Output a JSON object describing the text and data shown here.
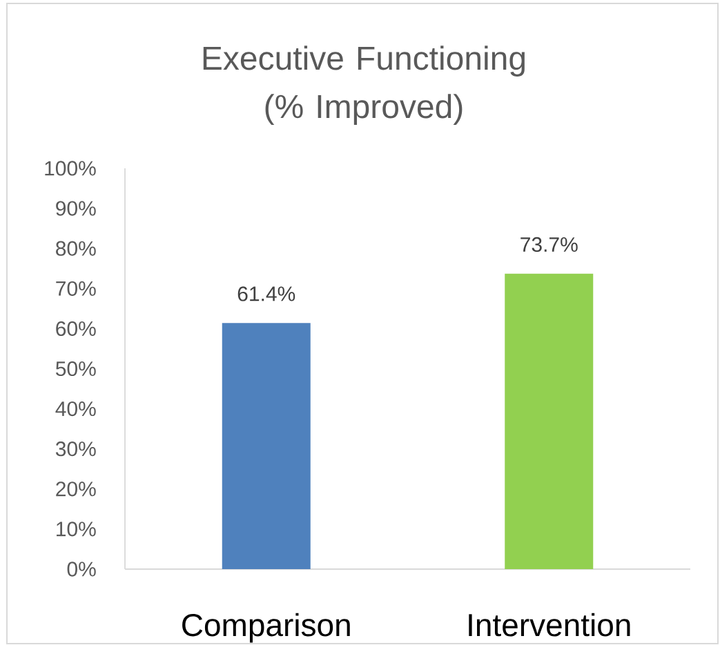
{
  "chart_data": {
    "type": "bar",
    "title": "Executive Functioning (% Improved)",
    "categories": [
      "Comparison",
      "Intervention"
    ],
    "values": [
      61.4,
      73.7
    ],
    "colors": [
      "#4f81bd",
      "#92d050"
    ],
    "value_labels": [
      "61.4%",
      "73.7%"
    ],
    "ylim": [
      0,
      100
    ],
    "yticks": [
      {
        "value": 0,
        "label": "0%"
      },
      {
        "value": 10,
        "label": "10%"
      },
      {
        "value": 20,
        "label": "20%"
      },
      {
        "value": 30,
        "label": "30%"
      },
      {
        "value": 40,
        "label": "40%"
      },
      {
        "value": 50,
        "label": "50%"
      },
      {
        "value": 60,
        "label": "60%"
      },
      {
        "value": 70,
        "label": "70%"
      },
      {
        "value": 80,
        "label": "80%"
      },
      {
        "value": 90,
        "label": "90%"
      },
      {
        "value": 100,
        "label": "100%"
      }
    ]
  }
}
